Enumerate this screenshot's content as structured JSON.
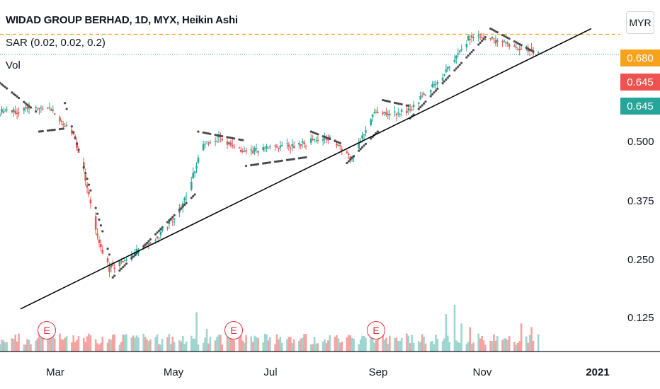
{
  "header": {
    "title": "WIDAD GROUP BERHAD, 1D, MYX, Heikin Ashi",
    "sar_label": "SAR (0.02, 0.02, 0.2)",
    "vol_label": "Vol",
    "currency": "MYR"
  },
  "colors": {
    "up": "#26a69a",
    "down": "#ef5350",
    "sar": "#4a4a4a",
    "resistance": "#f7a21b",
    "last_price": "#26a69a",
    "trendline": "#000000"
  },
  "price_badges": [
    {
      "label": "0.680",
      "value": 0.68,
      "color": "#f7a21b"
    },
    {
      "label": "0.645",
      "value": 0.645,
      "color": "#ef5350"
    },
    {
      "label": "0.645",
      "value": 0.645,
      "color": "#26a69a"
    }
  ],
  "earnings_marker": "E",
  "chart_data": {
    "type": "candlestick",
    "title": "WIDAD GROUP BERHAD, 1D, MYX, Heikin Ashi",
    "x_ticks": [
      "Mar",
      "May",
      "Jul",
      "Sep",
      "Nov",
      "2021"
    ],
    "y_ticks": [
      0.125,
      0.25,
      0.375,
      0.5
    ],
    "y_tick_labels": [
      "0.125",
      "0.250",
      "0.375",
      "0.500"
    ],
    "ylim": [
      0.06,
      0.74
    ],
    "xlim": [
      "2020-01-20",
      "2021-01-12"
    ],
    "resistance_level": 0.68,
    "last_price": 0.645,
    "grid": false,
    "earnings_dates": [
      "2020-02-27",
      "2020-05-28",
      "2020-08-27"
    ],
    "trendline": {
      "start": [
        "2020-02-01",
        0.2
      ],
      "end": [
        "2020-12-31",
        0.69
      ]
    },
    "price_segments": [
      {
        "from": "2020-01-20",
        "to": "2020-02-18",
        "start": 0.545,
        "end": 0.55
      },
      {
        "from": "2020-02-18",
        "to": "2020-03-03",
        "start": 0.55,
        "end": 0.505
      },
      {
        "from": "2020-03-03",
        "to": "2020-03-10",
        "start": 0.505,
        "end": 0.43
      },
      {
        "from": "2020-03-10",
        "to": "2020-03-18",
        "start": 0.43,
        "end": 0.315
      },
      {
        "from": "2020-03-18",
        "to": "2020-03-24",
        "start": 0.315,
        "end": 0.27
      },
      {
        "from": "2020-03-24",
        "to": "2020-04-20",
        "start": 0.27,
        "end": 0.32
      },
      {
        "from": "2020-04-20",
        "to": "2020-05-06",
        "start": 0.32,
        "end": 0.38
      },
      {
        "from": "2020-05-06",
        "to": "2020-05-18",
        "start": 0.38,
        "end": 0.485
      },
      {
        "from": "2020-05-18",
        "to": "2020-05-27",
        "start": 0.485,
        "end": 0.5
      },
      {
        "from": "2020-05-27",
        "to": "2020-06-12",
        "start": 0.5,
        "end": 0.475
      },
      {
        "from": "2020-06-12",
        "to": "2020-07-10",
        "start": 0.475,
        "end": 0.485
      },
      {
        "from": "2020-07-10",
        "to": "2020-07-30",
        "start": 0.485,
        "end": 0.5
      },
      {
        "from": "2020-07-30",
        "to": "2020-08-13",
        "start": 0.5,
        "end": 0.465
      },
      {
        "from": "2020-08-13",
        "to": "2020-08-25",
        "start": 0.465,
        "end": 0.54
      },
      {
        "from": "2020-08-25",
        "to": "2020-09-15",
        "start": 0.54,
        "end": 0.545
      },
      {
        "from": "2020-09-15",
        "to": "2020-10-05",
        "start": 0.545,
        "end": 0.61
      },
      {
        "from": "2020-10-05",
        "to": "2020-10-22",
        "start": 0.61,
        "end": 0.68
      },
      {
        "from": "2020-10-22",
        "to": "2020-11-12",
        "start": 0.68,
        "end": 0.665
      },
      {
        "from": "2020-11-12",
        "to": "2020-11-30",
        "start": 0.665,
        "end": 0.645
      }
    ],
    "sar_segments": [
      {
        "from": "2020-01-20",
        "to": "2020-02-10",
        "start": 0.595,
        "end": 0.545
      },
      {
        "from": "2020-02-12",
        "to": "2020-02-26",
        "start": 0.51,
        "end": 0.515
      },
      {
        "from": "2020-02-26",
        "to": "2020-03-24",
        "start": 0.57,
        "end": 0.295
      },
      {
        "from": "2020-03-26",
        "to": "2020-05-13",
        "start": 0.255,
        "end": 0.4
      },
      {
        "from": "2020-05-15",
        "to": "2020-06-10",
        "start": 0.51,
        "end": 0.495
      },
      {
        "from": "2020-06-12",
        "to": "2020-07-17",
        "start": 0.45,
        "end": 0.465
      },
      {
        "from": "2020-07-20",
        "to": "2020-08-06",
        "start": 0.51,
        "end": 0.49
      },
      {
        "from": "2020-08-10",
        "to": "2020-08-28",
        "start": 0.455,
        "end": 0.51
      },
      {
        "from": "2020-08-31",
        "to": "2020-09-15",
        "start": 0.565,
        "end": 0.555
      },
      {
        "from": "2020-09-15",
        "to": "2020-10-30",
        "start": 0.53,
        "end": 0.675
      },
      {
        "from": "2020-11-02",
        "to": "2020-11-27",
        "start": 0.69,
        "end": 0.65
      }
    ],
    "volume_ylim": [
      0,
      240
    ],
    "volume_spikes": [
      {
        "date": "2020-05-14",
        "value": 105
      },
      {
        "date": "2020-05-20",
        "value": 60
      },
      {
        "date": "2020-06-03",
        "value": 70
      },
      {
        "date": "2020-10-07",
        "value": 100
      },
      {
        "date": "2020-10-12",
        "value": 125
      },
      {
        "date": "2020-10-16",
        "value": 75
      },
      {
        "date": "2020-10-21",
        "value": 65
      },
      {
        "date": "2020-11-20",
        "value": 75
      },
      {
        "date": "2020-11-26",
        "value": 65
      }
    ]
  }
}
